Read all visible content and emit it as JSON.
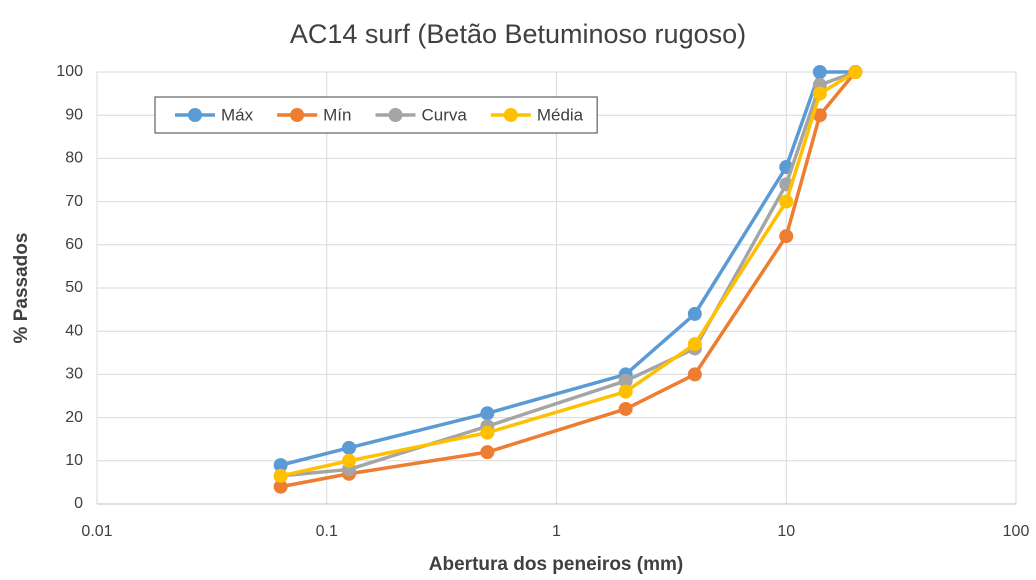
{
  "chart_data": {
    "type": "line",
    "title": "AC14 surf (Betão Betuminoso rugoso)",
    "x_label": "Abertura dos peneiros (mm)",
    "y_label": "% Passados",
    "x": [
      0.063,
      0.125,
      0.5,
      2,
      4,
      10,
      14,
      20
    ],
    "series": [
      {
        "name": "Máx",
        "color": "#5b9bd5",
        "values": [
          9,
          13,
          21,
          30,
          44,
          78,
          100,
          100
        ]
      },
      {
        "name": "Mín",
        "color": "#ed7d31",
        "values": [
          4,
          7,
          12,
          22,
          30,
          62,
          90,
          100
        ]
      },
      {
        "name": "Curva",
        "color": "#a5a5a5",
        "values": [
          6.5,
          8,
          18,
          28.5,
          36,
          74,
          97,
          100
        ]
      },
      {
        "name": "Média",
        "color": "#ffc000",
        "values": [
          6.5,
          10,
          16.5,
          26,
          37,
          70,
          95,
          100
        ]
      }
    ],
    "xscale": "log",
    "xlim": [
      0.01,
      100
    ],
    "xticks": [
      0.01,
      0.1,
      1,
      10,
      100
    ],
    "ylim": [
      0,
      100
    ],
    "yticks": [
      0,
      10,
      20,
      30,
      40,
      50,
      60,
      70,
      80,
      90,
      100
    ],
    "grid": true,
    "legend": "top-left"
  }
}
